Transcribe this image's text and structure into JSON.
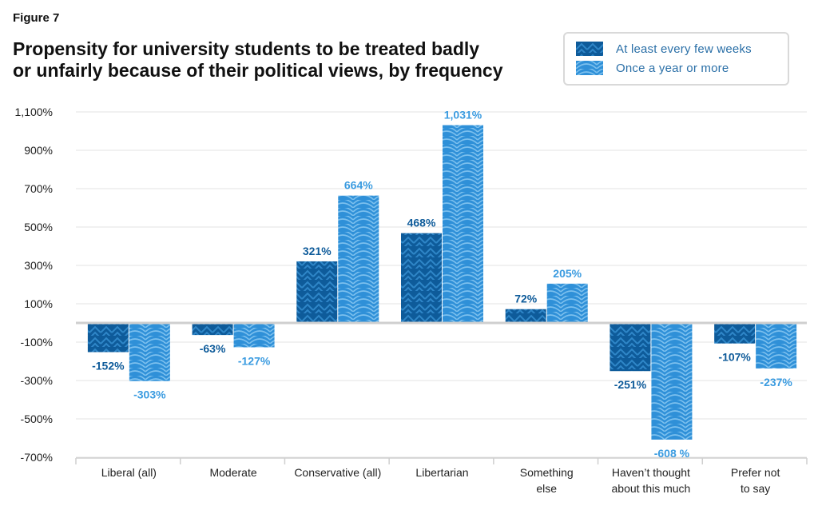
{
  "figure_label": "Figure 7",
  "chart_data": {
    "type": "bar",
    "title": "Propensity for university students to be treated badly or unfairly because of their political views, by frequency",
    "title_lines": [
      "Propensity for university students to be treated badly",
      "or unfairly because of their political views, by frequency"
    ],
    "categories": [
      [
        "Liberal (all)"
      ],
      [
        "Moderate"
      ],
      [
        "Conservative (all)"
      ],
      [
        "Libertarian"
      ],
      [
        "Something",
        "else"
      ],
      [
        "Haven’t thought",
        "about this much"
      ],
      [
        "Prefer not",
        "to say"
      ]
    ],
    "series": [
      {
        "name": "At least every few weeks",
        "values": [
          -152,
          -63,
          321,
          468,
          72,
          -251,
          -107
        ],
        "labels": [
          "-152%",
          "-63%",
          "321%",
          "468%",
          "72%",
          "-251%",
          "-107%"
        ],
        "color": "#0e5b9a",
        "pattern_color": "#2f86c8",
        "label_color": "#0e5b9a"
      },
      {
        "name": "Once a year or more",
        "values": [
          -303,
          -127,
          664,
          1031,
          205,
          -608,
          -237
        ],
        "labels": [
          "-303%",
          "-127%",
          "664%",
          "1,031%",
          "205%",
          "-608 %",
          "-237%"
        ],
        "color": "#2f90d8",
        "pattern_color": "#7cc0ee",
        "label_color": "#3a9be0"
      }
    ],
    "yticks": [
      -700,
      -500,
      -300,
      -100,
      100,
      300,
      500,
      700,
      900,
      1100
    ],
    "ytick_labels": [
      "-700%",
      "-500%",
      "-300%",
      "-100%",
      "100%",
      "300%",
      "500%",
      "700%",
      "900%",
      "1,100%"
    ],
    "ylim": [
      -700,
      1100
    ],
    "grid": true,
    "legend_position": "top-right"
  }
}
